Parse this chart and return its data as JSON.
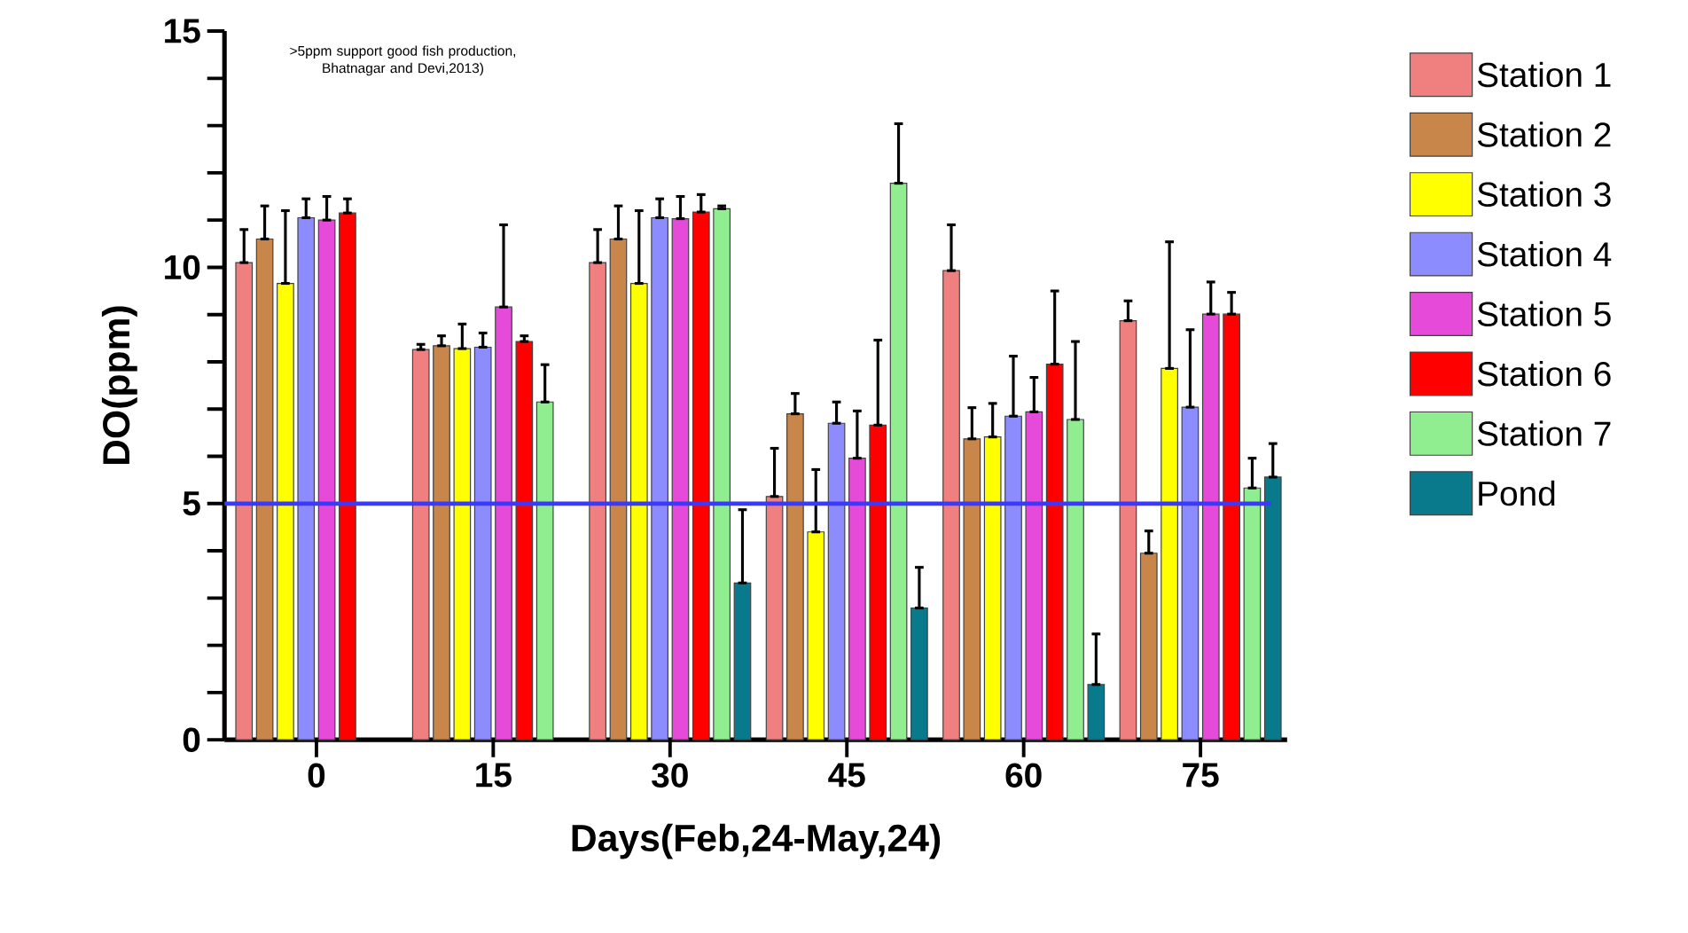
{
  "chart_data": {
    "type": "bar",
    "xlabel": "Days(Feb,24-May,24)",
    "ylabel": "DO(ppm)",
    "categories": [
      "0",
      "15",
      "30",
      "45",
      "60",
      "75"
    ],
    "ylim": [
      0,
      15
    ],
    "yticks": [
      0,
      {
        "value": 1,
        "label": null
      },
      {
        "value": 2,
        "label": null
      },
      {
        "value": 3,
        "label": null
      },
      {
        "value": 4,
        "label": null
      },
      5,
      {
        "value": 6,
        "label": null
      },
      {
        "value": 7,
        "label": null
      },
      {
        "value": 8,
        "label": null
      },
      {
        "value": 9,
        "label": null
      },
      10,
      {
        "value": 11,
        "label": null
      },
      {
        "value": 12,
        "label": null
      },
      {
        "value": 13,
        "label": null
      },
      {
        "value": 14,
        "label": null
      },
      15
    ],
    "series": [
      {
        "name": "Station 1",
        "color": "#f08080",
        "values": [
          10.1,
          8.26,
          10.1,
          5.15,
          9.93,
          8.87
        ],
        "errors": [
          [
            10.1,
            10.8
          ],
          [
            8.26,
            8.37
          ],
          [
            10.1,
            10.8
          ],
          [
            5.15,
            6.17
          ],
          [
            9.93,
            10.9
          ],
          [
            8.87,
            9.29
          ]
        ]
      },
      {
        "name": "Station 2",
        "color": "#c8864a",
        "values": [
          10.6,
          8.34,
          10.6,
          6.9,
          6.37,
          3.95
        ],
        "errors": [
          [
            10.6,
            11.3
          ],
          [
            8.34,
            8.55
          ],
          [
            10.6,
            11.3
          ],
          [
            6.9,
            7.33
          ],
          [
            6.37,
            7.03
          ],
          [
            3.95,
            4.42
          ]
        ]
      },
      {
        "name": "Station 3",
        "color": "#ffff00",
        "values": [
          9.66,
          8.28,
          9.66,
          4.4,
          6.41,
          7.86
        ],
        "errors": [
          [
            9.66,
            11.2
          ],
          [
            8.28,
            8.8
          ],
          [
            9.66,
            11.2
          ],
          [
            4.4,
            5.72
          ],
          [
            6.41,
            7.12
          ],
          [
            7.86,
            10.54
          ]
        ]
      },
      {
        "name": "Station 4",
        "color": "#8c8cff",
        "values": [
          11.05,
          8.31,
          11.05,
          6.7,
          6.85,
          7.04
        ],
        "errors": [
          [
            11.05,
            11.45
          ],
          [
            8.31,
            8.61
          ],
          [
            11.05,
            11.45
          ],
          [
            6.7,
            7.15
          ],
          [
            6.85,
            8.12
          ],
          [
            7.04,
            8.68
          ]
        ]
      },
      {
        "name": "Station 5",
        "color": "#e64ad8",
        "values": [
          11.0,
          9.16,
          11.03,
          5.96,
          6.94,
          9.01
        ],
        "errors": [
          [
            11.0,
            11.5
          ],
          [
            9.16,
            10.9
          ],
          [
            11.03,
            11.5
          ],
          [
            5.96,
            6.96
          ],
          [
            6.94,
            7.67
          ],
          [
            9.01,
            9.69
          ]
        ]
      },
      {
        "name": "Station 6",
        "color": "#ff0000",
        "values": [
          11.15,
          8.43,
          11.17,
          6.66,
          7.95,
          9.01
        ],
        "errors": [
          [
            11.15,
            11.45
          ],
          [
            8.43,
            8.55
          ],
          [
            11.17,
            11.54
          ],
          [
            6.66,
            8.46
          ],
          [
            7.95,
            9.5
          ],
          [
            9.01,
            9.47
          ]
        ]
      },
      {
        "name": "Station 7",
        "color": "#90ee90",
        "values": [
          null,
          7.15,
          11.24,
          11.78,
          6.78,
          5.33
        ],
        "errors": [
          null,
          [
            7.15,
            7.94
          ],
          [
            11.24,
            11.3
          ],
          [
            11.78,
            13.04
          ],
          [
            6.78,
            8.43
          ],
          [
            5.33,
            5.96
          ]
        ]
      },
      {
        "name": "Pond",
        "color": "#087a8c",
        "values": [
          null,
          null,
          3.32,
          2.79,
          1.17,
          5.56
        ],
        "errors": [
          null,
          null,
          [
            3.32,
            4.87
          ],
          [
            2.79,
            3.65
          ],
          [
            1.17,
            2.24
          ],
          [
            5.56,
            6.27
          ]
        ]
      }
    ],
    "ref_lines": [
      {
        "axis": "y",
        "value": 5,
        "color": "#3a3aff"
      }
    ],
    "annotations": [
      ">5ppm support good fish production, Bhatnagar and Devi,2013)"
    ],
    "legend": "right"
  }
}
